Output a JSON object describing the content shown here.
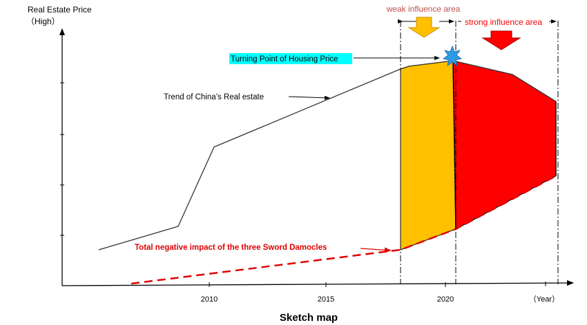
{
  "labels": {
    "y_axis_title": "Real Estate Price",
    "y_axis_high": "（High）",
    "x_axis_unit": "（Year）",
    "caption": "Sketch map",
    "weak_area": "weak influence area",
    "strong_area": "strong influence area",
    "turning_point": "Turning Point of Housing Price",
    "trend_label": "Trend of China’s Real estate",
    "negative_label": "Total negative impact of the three Sword Damocles"
  },
  "x_ticks": [
    "2010",
    "2015",
    "2020"
  ],
  "colors": {
    "axis": "#000000",
    "trend_line": "#333333",
    "weak_fill": "#FFC000",
    "strong_fill": "#FF0000",
    "dashed_line": "#E00000",
    "turning_highlight": "#00FFFF",
    "turning_star": "#2E9BE6",
    "weak_label": "#C0504D",
    "strong_label": "#FF0000",
    "weak_arrow": "#FFC000",
    "strong_arrow": "#FF0000"
  }
}
